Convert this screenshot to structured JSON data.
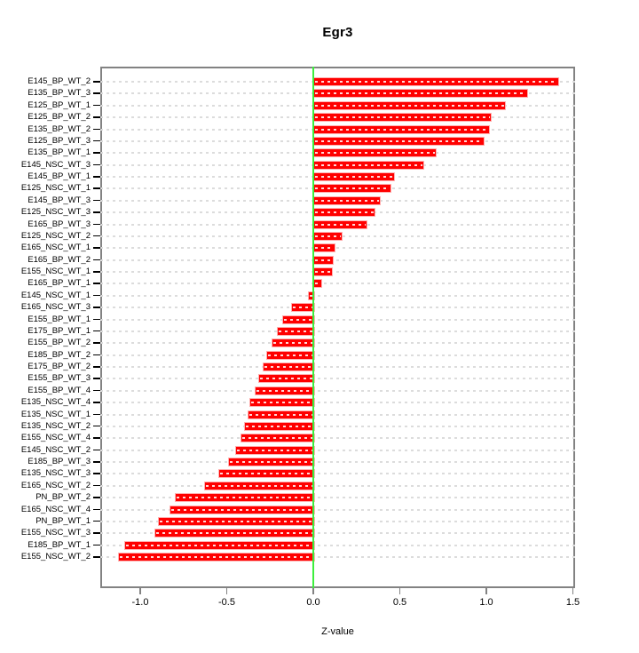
{
  "chart_data": {
    "type": "bar",
    "orientation": "horizontal",
    "title": "Egr3",
    "xlabel": "Z-value",
    "xlim": [
      -1.23,
      1.51
    ],
    "grid": "dashed-horizontal-per-bar",
    "legend": "none",
    "xticks": [
      -1.0,
      -0.5,
      0.0,
      0.5,
      1.0,
      1.5
    ],
    "xtick_labels": [
      "-1.0",
      "-0.5",
      "0.0",
      "0.5",
      "1.0",
      "1.5"
    ],
    "categories": [
      "E145_BP_WT_2",
      "E135_BP_WT_3",
      "E125_BP_WT_1",
      "E125_BP_WT_2",
      "E135_BP_WT_2",
      "E125_BP_WT_3",
      "E135_BP_WT_1",
      "E145_NSC_WT_3",
      "E145_BP_WT_1",
      "E125_NSC_WT_1",
      "E145_BP_WT_3",
      "E125_NSC_WT_3",
      "E165_BP_WT_3",
      "E125_NSC_WT_2",
      "E165_NSC_WT_1",
      "E165_BP_WT_2",
      "E155_NSC_WT_1",
      "E165_BP_WT_1",
      "E145_NSC_WT_1",
      "E165_NSC_WT_3",
      "E155_BP_WT_1",
      "E175_BP_WT_1",
      "E155_BP_WT_2",
      "E185_BP_WT_2",
      "E175_BP_WT_2",
      "E155_BP_WT_3",
      "E155_BP_WT_4",
      "E135_NSC_WT_4",
      "E135_NSC_WT_1",
      "E135_NSC_WT_2",
      "E155_NSC_WT_4",
      "E145_NSC_WT_2",
      "E185_BP_WT_3",
      "E135_NSC_WT_3",
      "E165_NSC_WT_2",
      "PN_BP_WT_2",
      "E165_NSC_WT_4",
      "PN_BP_WT_1",
      "E155_NSC_WT_3",
      "E185_BP_WT_1",
      "E155_NSC_WT_2"
    ],
    "values": [
      1.41,
      1.23,
      1.1,
      1.02,
      1.01,
      0.98,
      0.7,
      0.63,
      0.46,
      0.44,
      0.38,
      0.35,
      0.3,
      0.16,
      0.12,
      0.11,
      0.1,
      0.04,
      -0.03,
      -0.13,
      -0.18,
      -0.21,
      -0.24,
      -0.27,
      -0.29,
      -0.32,
      -0.34,
      -0.37,
      -0.38,
      -0.4,
      -0.42,
      -0.45,
      -0.49,
      -0.55,
      -0.63,
      -0.8,
      -0.83,
      -0.9,
      -0.92,
      -1.09,
      -1.13
    ],
    "colors": {
      "bar": "#ff0000",
      "bar_halo": "#ffb0b0",
      "bar_dash": "#ffffff",
      "zero_line": "#3dee3d",
      "gridline": "#dcdcdc",
      "box": "#828282",
      "text": "#000000"
    }
  }
}
